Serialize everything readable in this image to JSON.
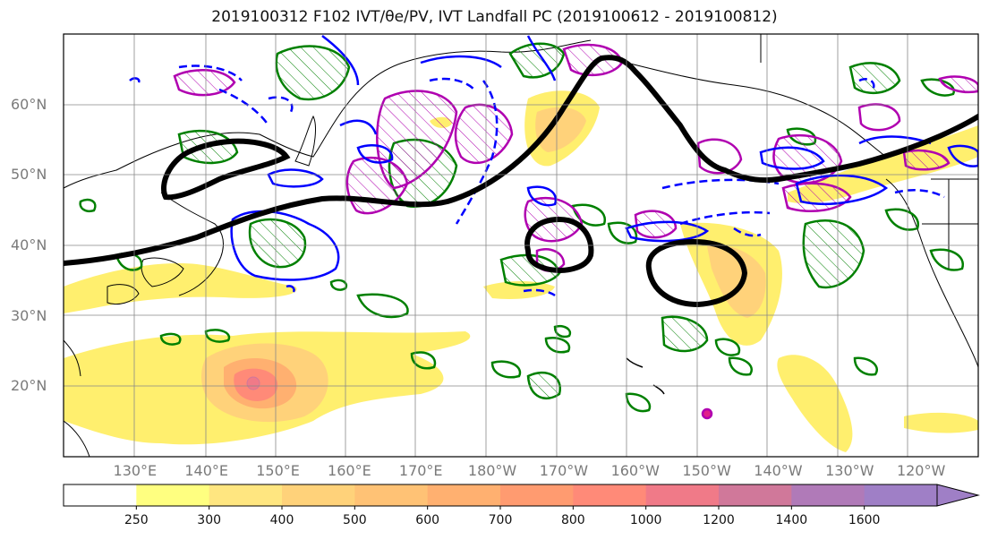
{
  "title": "2019100312 F102 IVT/θe/PV, IVT Landfall PC (2019100612 - 2019100812)",
  "map": {
    "lat_labels": [
      {
        "text": "60°N",
        "lat": 60
      },
      {
        "text": "50°N",
        "lat": 50
      },
      {
        "text": "40°N",
        "lat": 40
      },
      {
        "text": "30°N",
        "lat": 30
      },
      {
        "text": "20°N",
        "lat": 20
      }
    ],
    "lon_labels": [
      {
        "text": "130°E",
        "lon": 130
      },
      {
        "text": "140°E",
        "lon": 140
      },
      {
        "text": "150°E",
        "lon": 150
      },
      {
        "text": "160°E",
        "lon": 160
      },
      {
        "text": "170°E",
        "lon": 170
      },
      {
        "text": "180°W",
        "lon": 180
      },
      {
        "text": "170°W",
        "lon": 190
      },
      {
        "text": "160°W",
        "lon": 200
      },
      {
        "text": "150°W",
        "lon": 210
      },
      {
        "text": "140°W",
        "lon": 220
      },
      {
        "text": "130°W",
        "lon": 230
      },
      {
        "text": "120°W",
        "lon": 240
      }
    ],
    "extent": {
      "lon_min": 120,
      "lon_max": 248,
      "lat_min": 10,
      "lat_max": 70
    },
    "grid": true
  },
  "colorbar": {
    "ticks": [
      "250",
      "300",
      "400",
      "500",
      "600",
      "700",
      "800",
      "1000",
      "1200",
      "1400",
      "1600"
    ],
    "colors": [
      "#ffffff",
      "#ffff80",
      "#ffe680",
      "#ffd27a",
      "#ffc275",
      "#ffb070",
      "#ff9b70",
      "#ff8a78",
      "#f07a88",
      "#d0789a",
      "#b07ab8",
      "#9f7fc6"
    ],
    "extend": "max"
  },
  "colors": {
    "ivt_contour": "#000000",
    "theta_e": "#0000ff",
    "pv_positive": "#b000b0",
    "pv_green": "#008000",
    "ivt_fill_low": "#ffef6e",
    "ivt_fill_high": "#ff7d7d"
  }
}
